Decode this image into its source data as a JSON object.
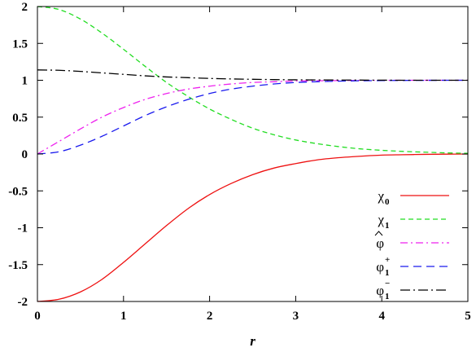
{
  "chart_data": {
    "type": "line",
    "title": "",
    "xlabel": "r",
    "ylabel": "",
    "xlim": [
      0,
      5
    ],
    "ylim": [
      -2,
      2
    ],
    "xticks": [
      "0",
      "1",
      "2",
      "3",
      "4",
      "5"
    ],
    "yticks": [
      "-2",
      "-1.5",
      "-1",
      "-0.5",
      "0",
      "0.5",
      "1",
      "1.5",
      "2"
    ],
    "xtick_values": [
      0,
      1,
      2,
      3,
      4,
      5
    ],
    "ytick_values": [
      -2,
      -1.5,
      -1,
      -0.5,
      0,
      0.5,
      1,
      1.5,
      2
    ],
    "grid": false,
    "legend_position": "bottom-right",
    "x": [
      0,
      0.25,
      0.5,
      0.75,
      1,
      1.25,
      1.5,
      1.75,
      2,
      2.25,
      2.5,
      2.75,
      3,
      3.25,
      3.5,
      3.75,
      4,
      4.25,
      4.5,
      4.75,
      5
    ],
    "series": [
      {
        "name": "χ0",
        "legend": {
          "base": "χ",
          "sup": "",
          "sub": "0",
          "hat": false
        },
        "color": "#ee1111",
        "dash": "",
        "values": [
          -2.0,
          -1.97,
          -1.87,
          -1.7,
          -1.47,
          -1.22,
          -0.97,
          -0.74,
          -0.55,
          -0.4,
          -0.28,
          -0.19,
          -0.13,
          -0.08,
          -0.05,
          -0.03,
          -0.015,
          -0.01,
          -0.005,
          -0.002,
          0.0
        ]
      },
      {
        "name": "χ1",
        "legend": {
          "base": "χ",
          "sup": "",
          "sub": "1",
          "hat": false
        },
        "color": "#22dd22",
        "dash": "6,4",
        "values": [
          2.0,
          1.96,
          1.83,
          1.64,
          1.42,
          1.19,
          0.97,
          0.78,
          0.61,
          0.47,
          0.35,
          0.26,
          0.19,
          0.14,
          0.1,
          0.07,
          0.05,
          0.035,
          0.025,
          0.015,
          0.01
        ]
      },
      {
        "name": "φ̂",
        "legend": {
          "base": "φ",
          "sup": "",
          "sub": "",
          "hat": true
        },
        "color": "#ee22ee",
        "dash": "9,4,2,4",
        "values": [
          0.0,
          0.17,
          0.34,
          0.5,
          0.63,
          0.74,
          0.82,
          0.88,
          0.92,
          0.95,
          0.97,
          0.98,
          0.99,
          0.993,
          0.996,
          0.998,
          0.999,
          1.0,
          1.0,
          1.0,
          1.0
        ]
      },
      {
        "name": "φ1+",
        "legend": {
          "base": "φ",
          "sup": "+",
          "sub": "1",
          "hat": false
        },
        "color": "#1a1aee",
        "dash": "10,6",
        "values": [
          0.0,
          0.03,
          0.12,
          0.24,
          0.38,
          0.52,
          0.64,
          0.74,
          0.82,
          0.88,
          0.92,
          0.95,
          0.97,
          0.98,
          0.988,
          0.993,
          0.996,
          0.998,
          0.999,
          1.0,
          1.0
        ]
      },
      {
        "name": "φ1−",
        "legend": {
          "base": "φ",
          "sup": "−",
          "sub": "1",
          "hat": false
        },
        "color": "#000000",
        "dash": "12,4,2,4",
        "values": [
          1.14,
          1.135,
          1.12,
          1.1,
          1.08,
          1.06,
          1.045,
          1.035,
          1.025,
          1.018,
          1.013,
          1.009,
          1.006,
          1.004,
          1.003,
          1.002,
          1.001,
          1.0,
          1.0,
          1.0,
          1.0
        ]
      }
    ]
  }
}
